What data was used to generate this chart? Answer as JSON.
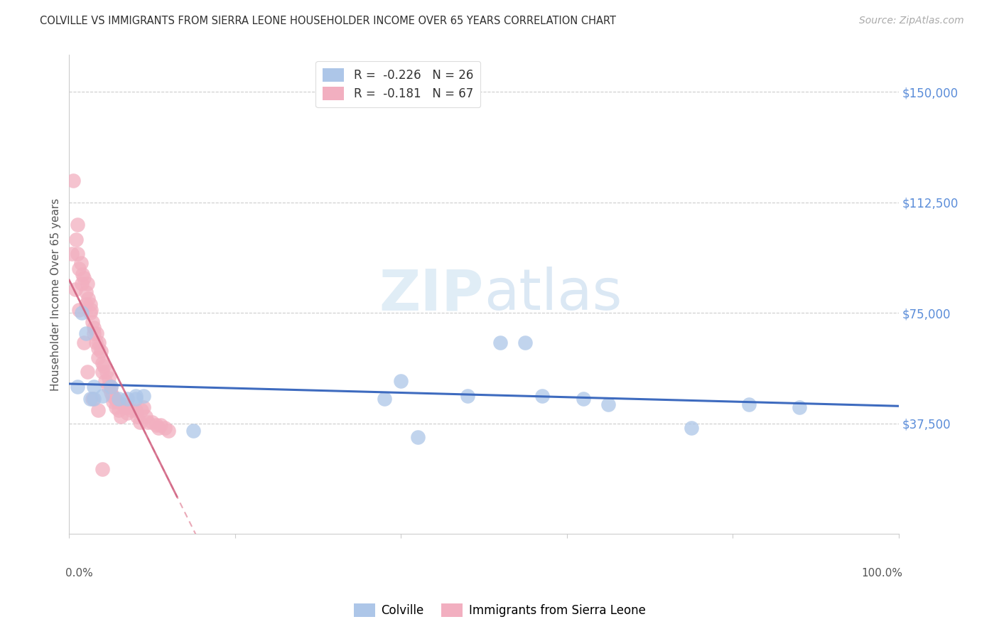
{
  "title": "COLVILLE VS IMMIGRANTS FROM SIERRA LEONE HOUSEHOLDER INCOME OVER 65 YEARS CORRELATION CHART",
  "source": "Source: ZipAtlas.com",
  "ylabel": "Householder Income Over 65 years",
  "ytick_labels": [
    "$37,500",
    "$75,000",
    "$112,500",
    "$150,000"
  ],
  "ytick_values": [
    37500,
    75000,
    112500,
    150000
  ],
  "ylim": [
    0,
    162500
  ],
  "xlim": [
    0,
    1.0
  ],
  "legend_blue_r": "R =  -0.226",
  "legend_blue_n": "N = 26",
  "legend_pink_r": "R =  -0.181",
  "legend_pink_n": "N = 67",
  "blue_scatter_color": "#adc6e8",
  "pink_scatter_color": "#f2afc0",
  "blue_line_color": "#3e6bbf",
  "pink_line_color": "#d06080",
  "pink_dash_color": "#e8a0b0",
  "title_color": "#303030",
  "source_color": "#aaaaaa",
  "ytick_color": "#5b8dd9",
  "xlabel_color": "#555555",
  "ylabel_color": "#555555",
  "grid_color": "#cccccc",
  "watermark_color": "#ccdff0",
  "colville_points_x": [
    0.01,
    0.015,
    0.02,
    0.025,
    0.03,
    0.03,
    0.04,
    0.05,
    0.06,
    0.07,
    0.08,
    0.08,
    0.09,
    0.15,
    0.38,
    0.4,
    0.42,
    0.48,
    0.52,
    0.55,
    0.57,
    0.62,
    0.65,
    0.75,
    0.82,
    0.88
  ],
  "colville_points_y": [
    50000,
    75000,
    68000,
    46000,
    50000,
    46000,
    47000,
    50000,
    46000,
    46000,
    46000,
    47000,
    47000,
    35000,
    46000,
    52000,
    33000,
    47000,
    65000,
    65000,
    47000,
    46000,
    44000,
    36000,
    44000,
    43000
  ],
  "sierra_leone_points_x": [
    0.005,
    0.008,
    0.01,
    0.01,
    0.012,
    0.014,
    0.015,
    0.016,
    0.018,
    0.02,
    0.02,
    0.022,
    0.023,
    0.025,
    0.025,
    0.026,
    0.028,
    0.03,
    0.03,
    0.032,
    0.033,
    0.035,
    0.035,
    0.036,
    0.038,
    0.04,
    0.04,
    0.042,
    0.043,
    0.045,
    0.047,
    0.048,
    0.05,
    0.05,
    0.052,
    0.053,
    0.055,
    0.056,
    0.058,
    0.06,
    0.062,
    0.065,
    0.068,
    0.07,
    0.07,
    0.075,
    0.08,
    0.082,
    0.085,
    0.087,
    0.09,
    0.092,
    0.095,
    0.1,
    0.105,
    0.108,
    0.11,
    0.115,
    0.12,
    0.003,
    0.007,
    0.012,
    0.018,
    0.022,
    0.028,
    0.035,
    0.04
  ],
  "sierra_leone_points_y": [
    120000,
    100000,
    95000,
    105000,
    90000,
    92000,
    85000,
    88000,
    87000,
    82000,
    78000,
    85000,
    80000,
    78000,
    75000,
    76000,
    72000,
    70000,
    68000,
    65000,
    68000,
    63000,
    60000,
    65000,
    62000,
    58000,
    55000,
    57000,
    52000,
    55000,
    50000,
    53000,
    48000,
    50000,
    47000,
    45000,
    46000,
    43000,
    45000,
    42000,
    40000,
    44000,
    43000,
    41000,
    43000,
    42000,
    42000,
    40000,
    38000,
    42000,
    43000,
    40000,
    38000,
    38000,
    37000,
    36000,
    37000,
    36000,
    35000,
    95000,
    83000,
    76000,
    65000,
    55000,
    46000,
    42000,
    22000
  ]
}
